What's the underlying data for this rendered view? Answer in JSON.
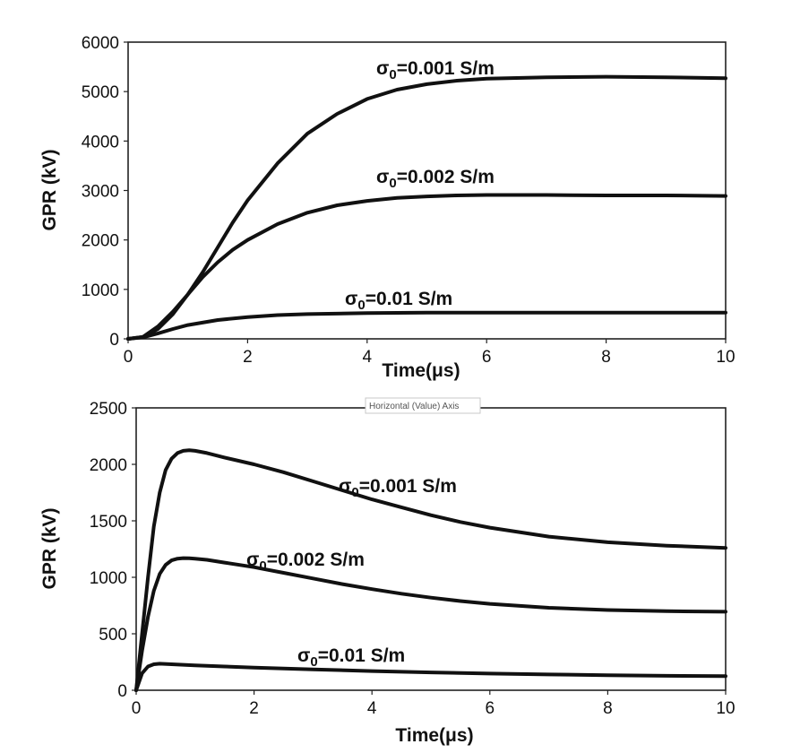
{
  "tooltip": "Horizontal (Value) Axis",
  "chart_data": [
    {
      "type": "line",
      "xlabel": "Time(μs)",
      "ylabel": "GPR (kV)",
      "xlim": [
        0,
        10
      ],
      "ylim": [
        0,
        6000
      ],
      "x_ticks": [
        "0",
        "2",
        "4",
        "6",
        "8",
        "10"
      ],
      "y_ticks": [
        "0",
        "1000",
        "2000",
        "3000",
        "4000",
        "5000",
        "6000"
      ],
      "grid": false,
      "line_color": "#111111",
      "series": [
        {
          "name": "σ0=0.001 S/m",
          "x": [
            0,
            0.25,
            0.5,
            0.75,
            1,
            1.25,
            1.5,
            1.75,
            2,
            2.5,
            3,
            3.5,
            4,
            4.5,
            5,
            5.5,
            6,
            7,
            8,
            9,
            10
          ],
          "y": [
            0,
            40,
            200,
            500,
            900,
            1350,
            1850,
            2350,
            2800,
            3550,
            4150,
            4550,
            4850,
            5040,
            5150,
            5220,
            5260,
            5290,
            5300,
            5290,
            5270
          ]
        },
        {
          "name": "σ0=0.002 S/m",
          "x": [
            0,
            0.25,
            0.5,
            0.75,
            1,
            1.25,
            1.5,
            1.75,
            2,
            2.5,
            3,
            3.5,
            4,
            4.5,
            5,
            5.5,
            6,
            7,
            8,
            9,
            10
          ],
          "y": [
            0,
            40,
            250,
            550,
            900,
            1250,
            1550,
            1800,
            2000,
            2320,
            2550,
            2700,
            2790,
            2850,
            2880,
            2900,
            2910,
            2910,
            2900,
            2900,
            2890
          ]
        },
        {
          "name": "σ0=0.01 S/m",
          "x": [
            0,
            0.25,
            0.5,
            0.75,
            1,
            1.5,
            2,
            2.5,
            3,
            4,
            5,
            6,
            7,
            8,
            9,
            10
          ],
          "y": [
            0,
            30,
            110,
            200,
            280,
            380,
            440,
            480,
            500,
            520,
            530,
            530,
            530,
            530,
            530,
            530
          ]
        }
      ]
    },
    {
      "type": "line",
      "xlabel": "Time(μs)",
      "ylabel": "GPR (kV)",
      "xlim": [
        0,
        10
      ],
      "ylim": [
        0,
        2500
      ],
      "x_ticks": [
        "0",
        "2",
        "4",
        "6",
        "8",
        "10"
      ],
      "y_ticks": [
        "0",
        "500",
        "1000",
        "1500",
        "2000",
        "2500"
      ],
      "grid": false,
      "line_color": "#111111",
      "series": [
        {
          "name": "σ0=0.001 S/m",
          "x": [
            0,
            0.1,
            0.2,
            0.3,
            0.4,
            0.5,
            0.6,
            0.7,
            0.8,
            0.9,
            1,
            1.2,
            1.5,
            2,
            2.5,
            3,
            3.5,
            4,
            4.5,
            5,
            5.5,
            6,
            7,
            8,
            9,
            10
          ],
          "y": [
            0,
            500,
            1000,
            1450,
            1750,
            1950,
            2050,
            2100,
            2120,
            2125,
            2120,
            2100,
            2060,
            2000,
            1930,
            1850,
            1770,
            1690,
            1620,
            1550,
            1490,
            1440,
            1360,
            1310,
            1280,
            1260
          ]
        },
        {
          "name": "σ0=0.002 S/m",
          "x": [
            0,
            0.1,
            0.2,
            0.3,
            0.4,
            0.5,
            0.6,
            0.7,
            0.8,
            0.9,
            1,
            1.2,
            1.5,
            2,
            2.5,
            3,
            3.5,
            4,
            4.5,
            5,
            5.5,
            6,
            7,
            8,
            9,
            10
          ],
          "y": [
            0,
            350,
            650,
            880,
            1030,
            1110,
            1150,
            1165,
            1170,
            1168,
            1165,
            1155,
            1130,
            1090,
            1040,
            990,
            940,
            895,
            855,
            820,
            790,
            765,
            730,
            710,
            700,
            695
          ]
        },
        {
          "name": "σ0=0.01 S/m",
          "x": [
            0,
            0.1,
            0.2,
            0.3,
            0.4,
            0.6,
            0.8,
            1,
            1.5,
            2,
            3,
            4,
            5,
            6,
            7,
            8,
            9,
            10
          ],
          "y": [
            0,
            150,
            210,
            230,
            235,
            230,
            225,
            220,
            210,
            200,
            185,
            170,
            158,
            148,
            140,
            133,
            128,
            125
          ]
        }
      ]
    }
  ]
}
